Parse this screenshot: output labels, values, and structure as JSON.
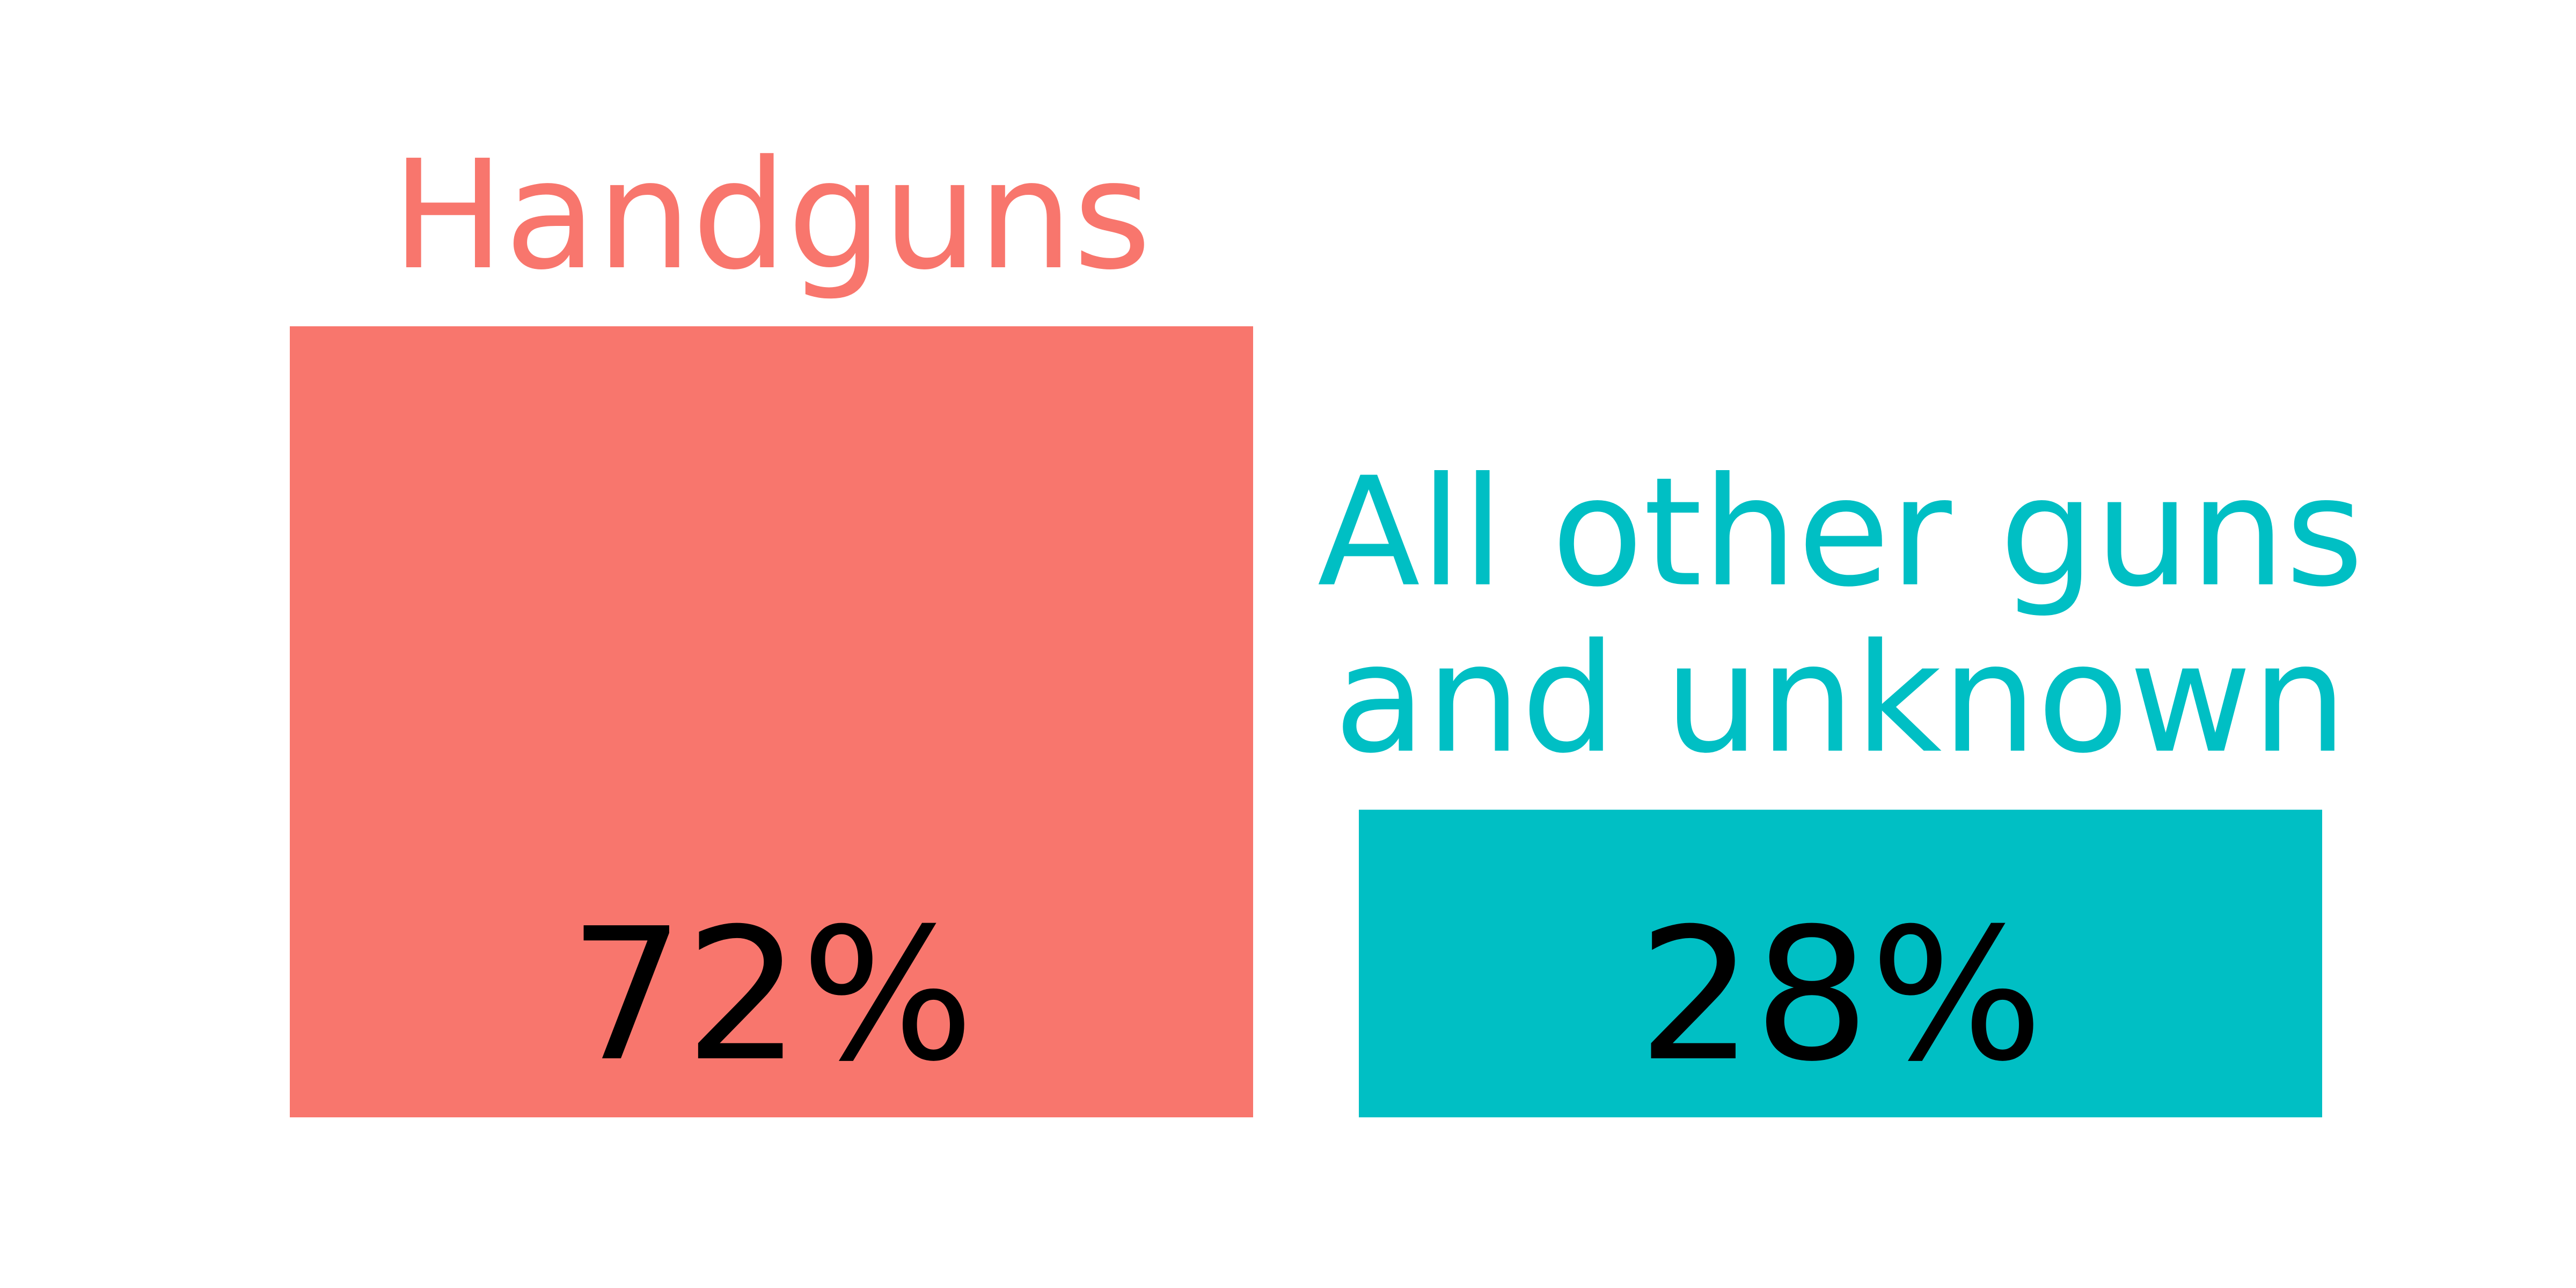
{
  "chart_data": {
    "type": "bar",
    "categories": [
      [
        "Handguns"
      ],
      [
        "All other guns",
        "and unknown"
      ]
    ],
    "values": [
      72,
      28
    ],
    "value_labels": [
      "72%",
      "28%"
    ],
    "colors": [
      "#F8766D",
      "#00BFC4"
    ],
    "ylim": [
      0,
      72
    ],
    "grid": false,
    "legend": "none"
  }
}
